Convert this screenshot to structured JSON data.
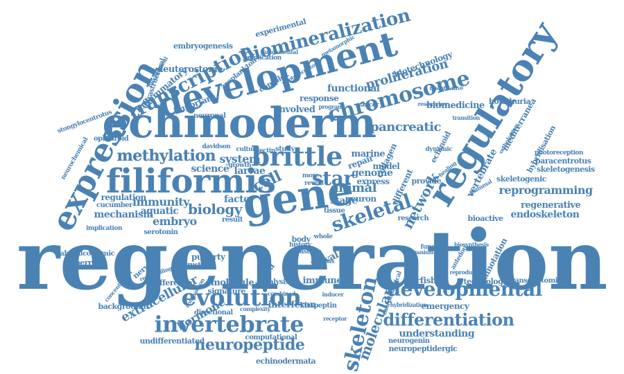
{
  "color": "#4a82b4",
  "words": [
    "regeneration",
    "echinoderm",
    "development",
    "expression",
    "regulatory",
    "filiformis",
    "gene",
    "transcription",
    "biomineralization",
    "evolution",
    "invertebrate",
    "developmental",
    "skeleton",
    "brittle",
    "chromosome",
    "methylation",
    "differentiation",
    "neuropeptide",
    "skeletal",
    "cell",
    "star",
    "network",
    "molecular",
    "reprogramming",
    "extracellular",
    "biology",
    "immunity",
    "embryo",
    "pancreatic",
    "proliferation",
    "vertebrate",
    "animal",
    "stage",
    "system",
    "genome",
    "mechanism",
    "regulation",
    "hormone",
    "understanding",
    "endoskeleton",
    "regenerative",
    "aquatic",
    "science",
    "larvae",
    "important",
    "functional",
    "biomedicine",
    "biotechnology",
    "involved",
    "response",
    "inflammatory",
    "deuterostome",
    "embryogenesis",
    "experimental",
    "holothuria",
    "mediterranea",
    "hybridisation",
    "paracentrotus",
    "skeletogenesis",
    "skeletogenic",
    "bioactive",
    "annotation",
    "starfishes",
    "technology",
    "transcriptomics",
    "emergency",
    "interferon",
    "immune",
    "molecule",
    "difference",
    "background",
    "directional",
    "undifferentiated",
    "computational",
    "echinodermata",
    "neurogenin",
    "neuropeptidergic",
    "nervous",
    "puberty",
    "glaberrima",
    "aboralcoelomic",
    "serotonin",
    "cucumber",
    "ophiuroid",
    "zooplankton",
    "complex",
    "neuronal",
    "ultrastructural",
    "stongylocentrotus",
    "neurochemical",
    "marine",
    "collagen",
    "echinoid",
    "dynamic",
    "repair",
    "different",
    "model",
    "provide",
    "express",
    "factor",
    "result",
    "research",
    "larval",
    "wound",
    "kisspeptin",
    "signature",
    "analysis",
    "photoreception",
    "antedon",
    "orthologous",
    "methylation",
    "fundamental",
    "application",
    "metamorphic",
    "biochemical",
    "photoreceptor",
    "quantitative",
    "cancer",
    "researcher",
    "program",
    "transition",
    "davidson",
    "culture",
    "lectin",
    "study",
    "growth",
    "neuron",
    "more",
    "reveal",
    "tissue",
    "body",
    "whole",
    "history",
    "asteria",
    "rubens",
    "morphological",
    "comparison",
    "implication",
    "remodelling",
    "concentration",
    "structural",
    "inducer",
    "mammal",
    "healing",
    "function",
    "organism",
    "combined",
    "complexity",
    "receptor",
    "hybridization",
    "biosynthesis",
    "reproductive"
  ]
}
